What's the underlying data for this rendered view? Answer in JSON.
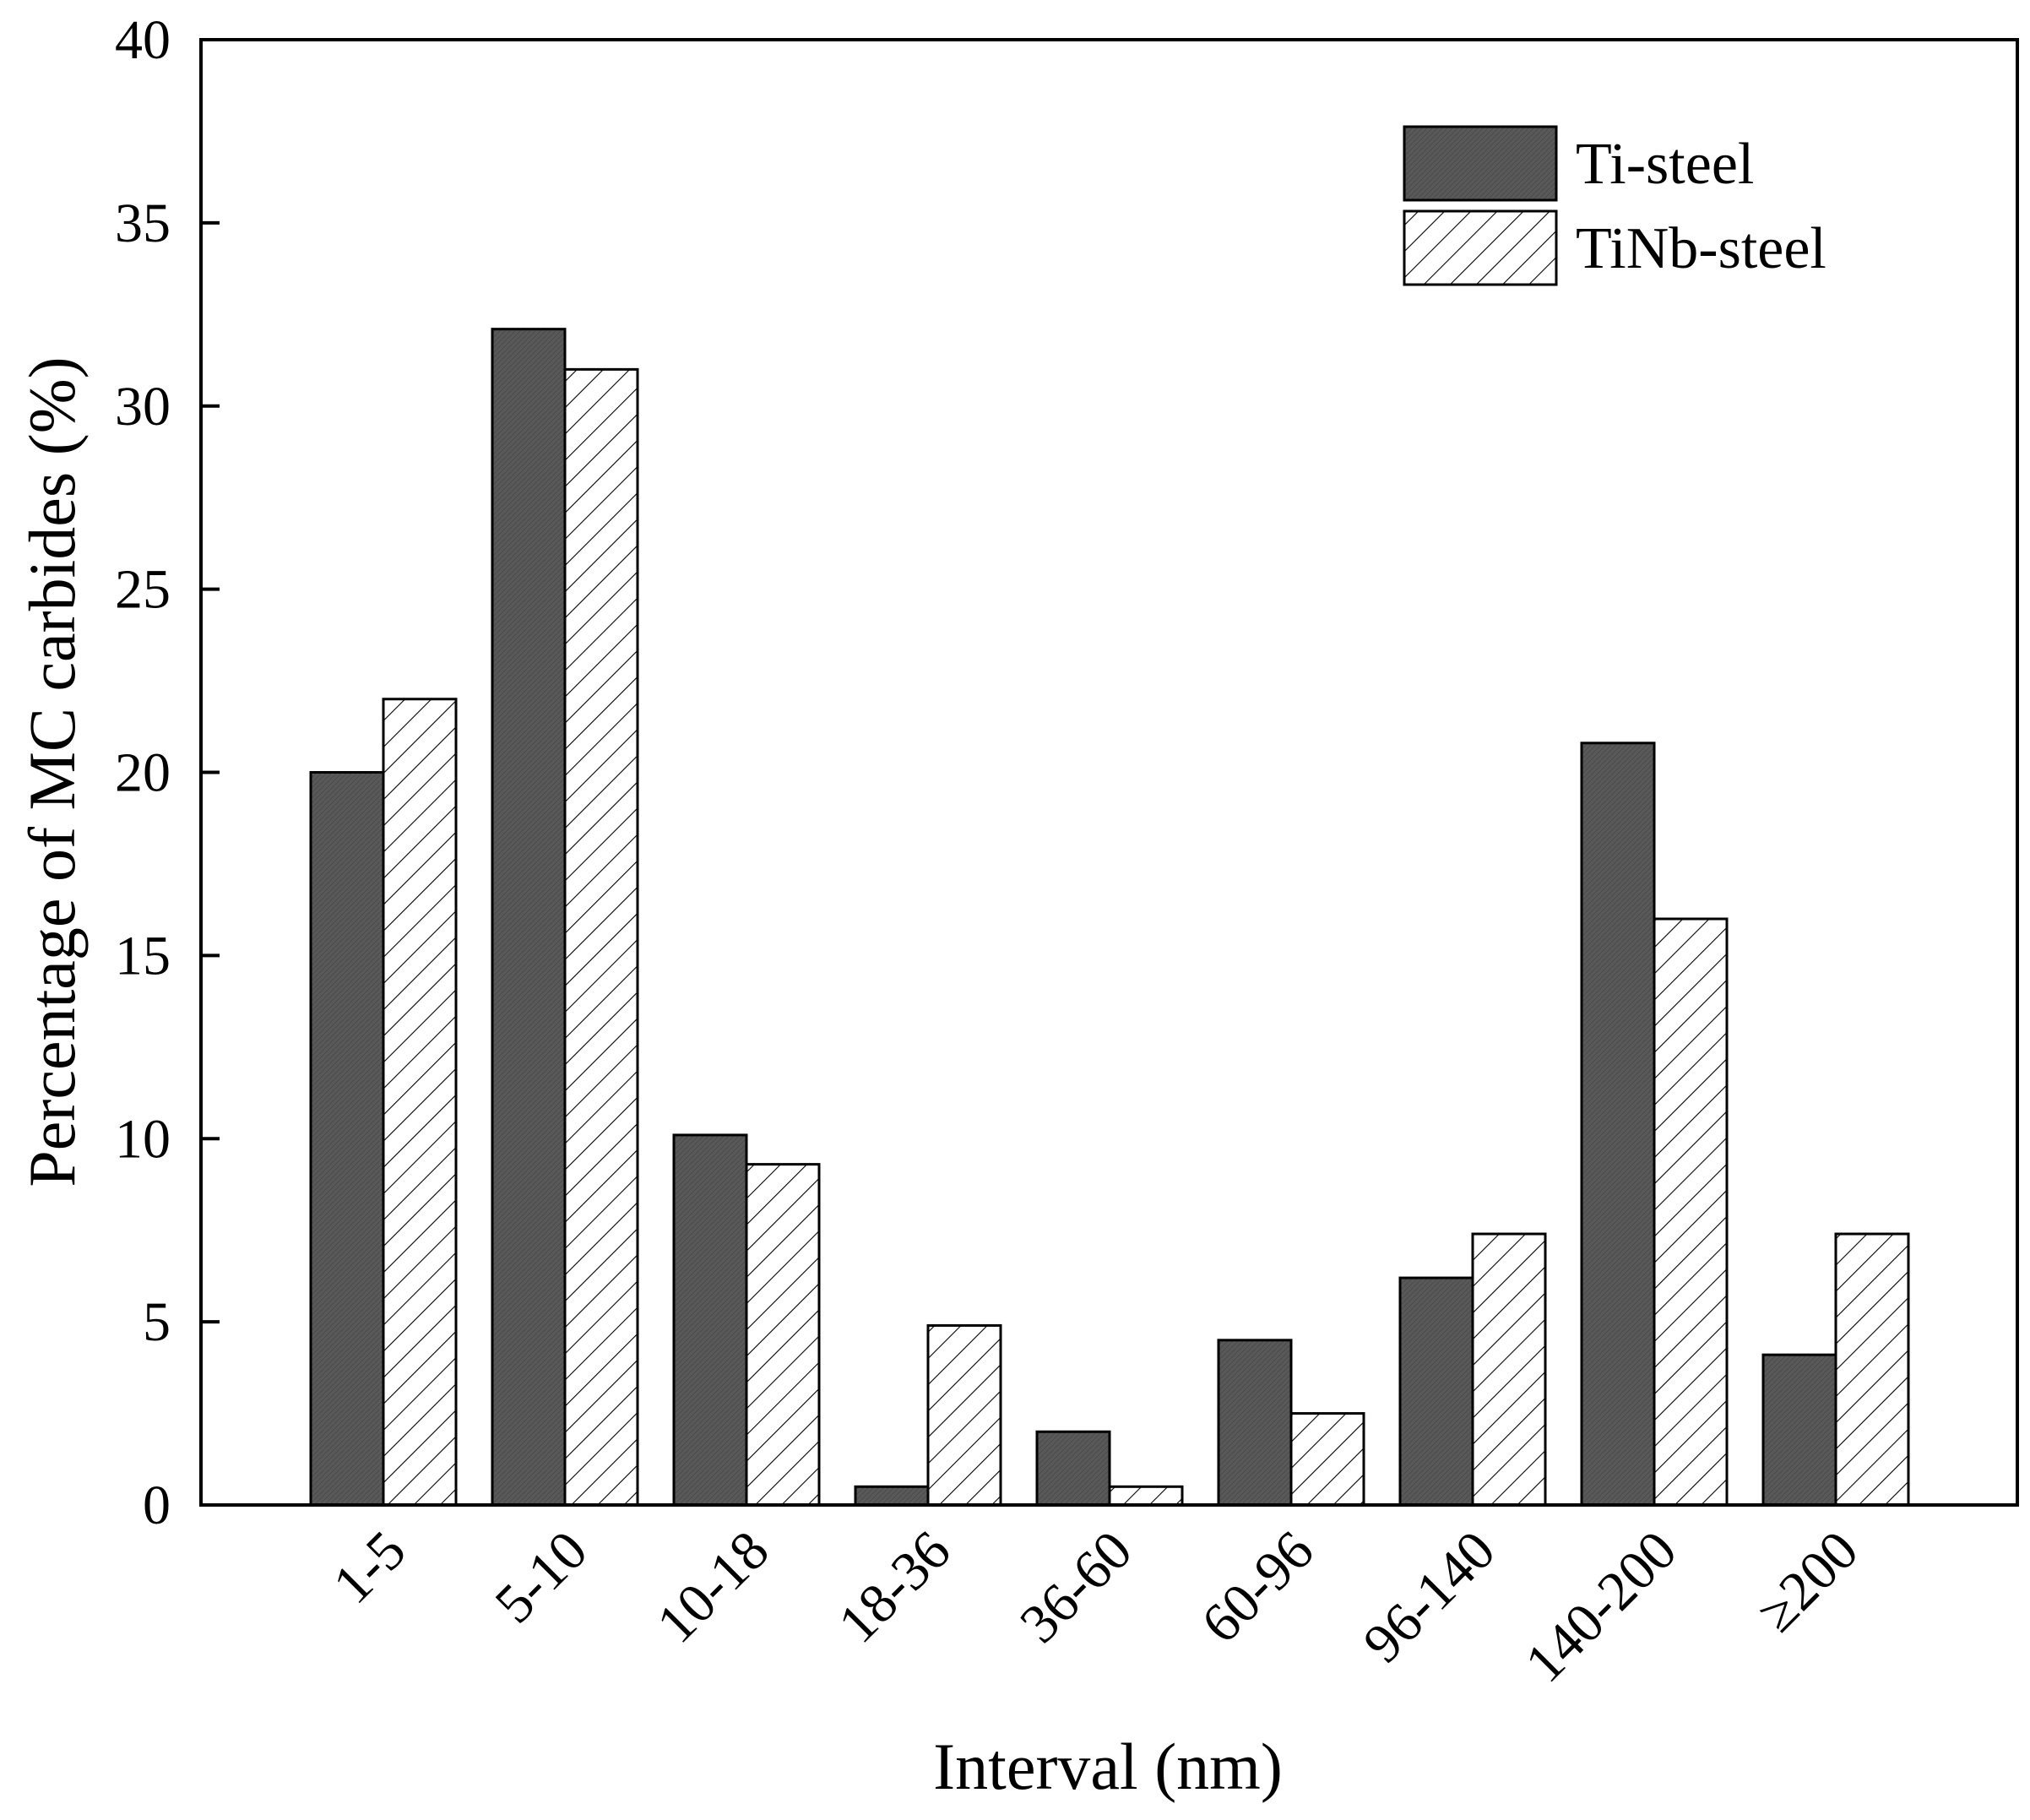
{
  "chart_data": {
    "type": "bar",
    "title": "",
    "xlabel": "Interval (nm)",
    "ylabel": "Percentage of MC carbides (%)",
    "ylim": [
      0,
      40
    ],
    "yticks": [
      0,
      5,
      10,
      15,
      20,
      25,
      30,
      35,
      40
    ],
    "categories": [
      "1-5",
      "5-10",
      "10-18",
      "18-36",
      "36-60",
      "60-96",
      "96-140",
      "140-200",
      "≥200"
    ],
    "series": [
      {
        "name": "Ti-steel",
        "style": "dark-fill",
        "values": [
          20.0,
          32.1,
          10.1,
          0.5,
          2.0,
          4.5,
          6.2,
          20.8,
          4.1
        ]
      },
      {
        "name": "TiNb-steel",
        "style": "hatched",
        "values": [
          22.0,
          31.0,
          9.3,
          4.9,
          0.5,
          2.5,
          7.4,
          16.0,
          7.4
        ]
      }
    ],
    "legend_position": "top-right",
    "grid": false
  },
  "colors": {
    "ti_fill": "#595959",
    "tinb_fill": "#ffffff",
    "stroke": "#000000"
  }
}
